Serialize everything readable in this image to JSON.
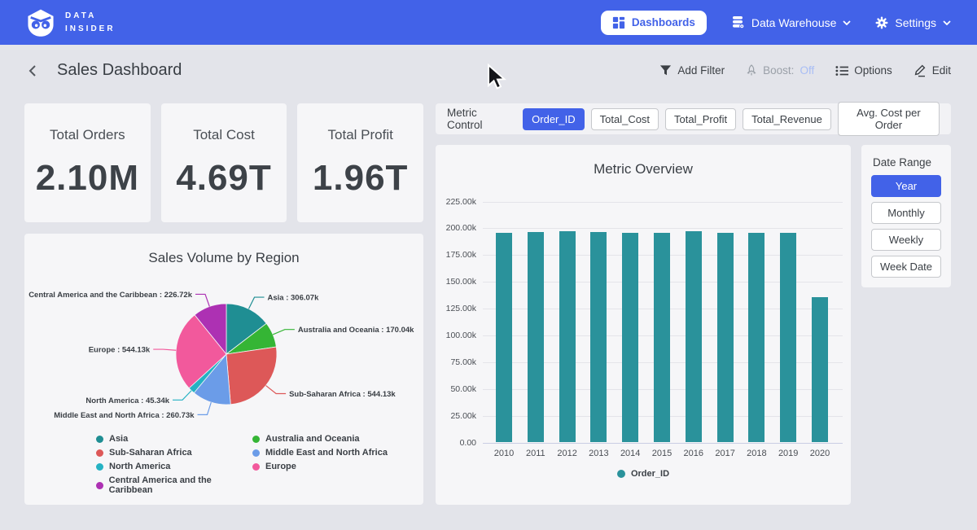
{
  "theme": {
    "accent_blue": "#4262e8",
    "bar_teal": "#2a929b",
    "boost_off_color": "#a8bdf5"
  },
  "brand": {
    "line1": "DATA",
    "line2": "INSIDER"
  },
  "top_nav": {
    "dashboards": "Dashboards",
    "data_warehouse": "Data Warehouse",
    "settings": "Settings"
  },
  "titlebar": {
    "title": "Sales Dashboard",
    "add_filter": "Add Filter",
    "boost_label": "Boost:",
    "boost_value": "Off",
    "options": "Options",
    "edit": "Edit"
  },
  "kpis": [
    {
      "label": "Total Orders",
      "value": "2.10M"
    },
    {
      "label": "Total Cost",
      "value": "4.69T"
    },
    {
      "label": "Total Profit",
      "value": "1.96T"
    }
  ],
  "metric_control": {
    "label": "Metric Control",
    "chips": [
      "Order_ID",
      "Total_Cost",
      "Total_Profit",
      "Total_Revenue",
      "Avg. Cost per Order"
    ],
    "selected": "Order_ID"
  },
  "date_range": {
    "label": "Date Range",
    "options": [
      "Year",
      "Monthly",
      "Weekly",
      "Week Date"
    ],
    "selected": "Year"
  },
  "chart_data": [
    {
      "type": "bar",
      "title": "Metric Overview",
      "categories": [
        "2010",
        "2011",
        "2012",
        "2013",
        "2014",
        "2015",
        "2016",
        "2017",
        "2018",
        "2019",
        "2020"
      ],
      "series": [
        {
          "name": "Order_ID",
          "color": "#2a929b",
          "values": [
            195900,
            196200,
            197100,
            196200,
            195800,
            196000,
            197000,
            196100,
            195900,
            196000,
            135700
          ]
        }
      ],
      "ylim": [
        0,
        225000
      ],
      "ytick_step": 25000,
      "ytick_labels": [
        "0.00",
        "25.00k",
        "50.00k",
        "75.00k",
        "100.00k",
        "125.00k",
        "150.00k",
        "175.00k",
        "200.00k",
        "225.00k"
      ],
      "grid": true,
      "legend_position": "bottom"
    },
    {
      "type": "pie",
      "title": "Sales Volume by Region",
      "slices": [
        {
          "label": "Asia",
          "value": 306070,
          "display": "Asia : 306.07k",
          "color": "#1f8e93"
        },
        {
          "label": "Australia and Oceania",
          "value": 170040,
          "display": "Australia and Oceania : 170.04k",
          "color": "#35b535"
        },
        {
          "label": "Sub-Saharan Africa",
          "value": 544130,
          "display": "Sub-Saharan Africa : 544.13k",
          "color": "#dd5858"
        },
        {
          "label": "Middle East and North Africa",
          "value": 260730,
          "display": "Middle East and North Africa : 260.73k",
          "color": "#6b9ce8"
        },
        {
          "label": "North America",
          "value": 45340,
          "display": "North America : 45.34k",
          "color": "#25b2c3"
        },
        {
          "label": "Europe",
          "value": 544130,
          "display": "Europe : 544.13k",
          "color": "#f2599c"
        },
        {
          "label": "Central America and the Caribbean",
          "value": 226720,
          "display": "Central America and the Caribbean : 226.72k",
          "color": "#ad31b3"
        }
      ]
    }
  ]
}
